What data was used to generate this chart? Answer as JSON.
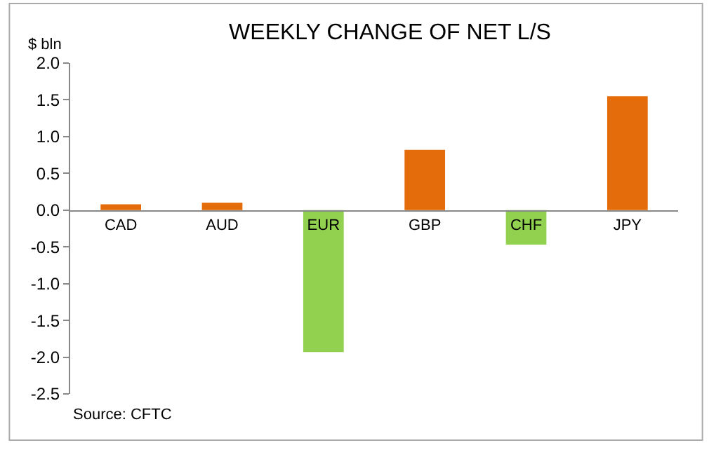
{
  "chart_data": {
    "type": "bar",
    "title": "WEEKLY CHANGE OF NET L/S",
    "ylabel": "$ bln",
    "categories": [
      "CAD",
      "AUD",
      "EUR",
      "GBP",
      "CHF",
      "JPY"
    ],
    "values": [
      0.08,
      0.1,
      -1.93,
      0.82,
      -0.47,
      1.55
    ],
    "colors": [
      "#e46c0a",
      "#e46c0a",
      "#92d050",
      "#e46c0a",
      "#92d050",
      "#e46c0a"
    ],
    "ylim": [
      -2.5,
      2.0
    ],
    "yticks": [
      {
        "value": -2.5,
        "label": "-2.5"
      },
      {
        "value": -2.0,
        "label": "-2.0"
      },
      {
        "value": -1.5,
        "label": "-1.5"
      },
      {
        "value": -1.0,
        "label": "-1.0"
      },
      {
        "value": -0.5,
        "label": "-0.5"
      },
      {
        "value": 0,
        "label": "0.0"
      },
      {
        "value": 0.5,
        "label": "0.5"
      },
      {
        "value": 1.0,
        "label": "1.0"
      },
      {
        "value": 1.5,
        "label": "1.5"
      },
      {
        "value": 2.0,
        "label": "2.0"
      }
    ],
    "grid": false,
    "legend": false,
    "annotations": [
      "Source: CFTC"
    ]
  }
}
